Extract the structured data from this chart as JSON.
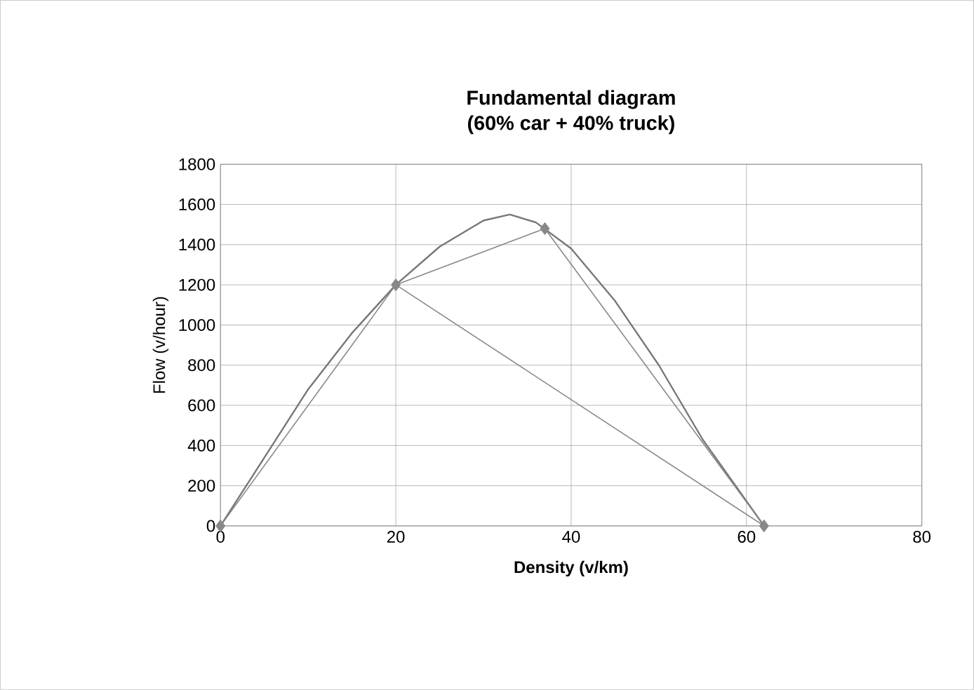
{
  "chart_data": {
    "type": "line",
    "title": "Fundamental diagram",
    "subtitle": "(60% car + 40% truck)",
    "xlabel": "Density (v/km)",
    "ylabel": "Flow (v/hour)",
    "xlim": [
      0,
      80
    ],
    "ylim": [
      0,
      1800
    ],
    "xticks": [
      0,
      20,
      40,
      60,
      80
    ],
    "yticks": [
      0,
      200,
      400,
      600,
      800,
      1000,
      1200,
      1400,
      1600,
      1800
    ],
    "grid": true,
    "series": [
      {
        "color": "#777777",
        "marker": "none",
        "x": [
          0,
          5,
          10,
          15,
          20,
          25,
          30,
          33,
          36,
          40,
          45,
          50,
          55,
          62
        ],
        "values": [
          0,
          340,
          680,
          960,
          1200,
          1390,
          1520,
          1550,
          1510,
          1380,
          1120,
          800,
          430,
          0
        ]
      },
      {
        "color": "#888888",
        "marker": "diamond",
        "x": [
          0,
          20,
          37,
          62
        ],
        "values": [
          0,
          1200,
          1480,
          0
        ]
      },
      {
        "color": "#888888",
        "marker": "none",
        "x": [
          20,
          62
        ],
        "values": [
          1200,
          0
        ]
      }
    ]
  }
}
